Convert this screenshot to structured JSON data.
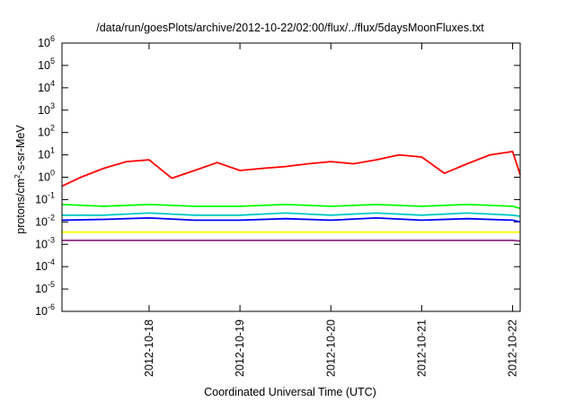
{
  "chart_data": {
    "type": "line",
    "title": "/data/run/goesPlots/archive/2012-10-22/02:00/flux/../flux/5daysMoonFluxes.txt",
    "xlabel": "Coordinated Universal Time (UTC)",
    "ylabel": {
      "base": "protons/cm",
      "sup": "2",
      "rest": "-s-sr-MeV"
    },
    "y_scale": "log",
    "ylim": [
      1e-06,
      1000000.0
    ],
    "xlim": [
      "2012-10-17 01:00",
      "2012-10-22 02:00"
    ],
    "grid": false,
    "legend": "none",
    "y_ticks": [
      {
        "value": 1e-06,
        "exp": "-6"
      },
      {
        "value": 1e-05,
        "exp": "-5"
      },
      {
        "value": 0.0001,
        "exp": "-4"
      },
      {
        "value": 0.001,
        "exp": "-3"
      },
      {
        "value": 0.01,
        "exp": "-2"
      },
      {
        "value": 0.1,
        "exp": "-1"
      },
      {
        "value": 1.0,
        "exp": "0"
      },
      {
        "value": 10.0,
        "exp": "1"
      },
      {
        "value": 100.0,
        "exp": "2"
      },
      {
        "value": 1000.0,
        "exp": "3"
      },
      {
        "value": 10000.0,
        "exp": "4"
      },
      {
        "value": 100000.0,
        "exp": "5"
      },
      {
        "value": 1000000.0,
        "exp": "6"
      }
    ],
    "x_ticks": [
      {
        "label": "2012-10-18",
        "value": "2012-10-18 00:00"
      },
      {
        "label": "2012-10-19",
        "value": "2012-10-19 00:00"
      },
      {
        "label": "2012-10-20",
        "value": "2012-10-20 00:00"
      },
      {
        "label": "2012-10-21",
        "value": "2012-10-21 00:00"
      },
      {
        "label": "2012-10-22",
        "value": "2012-10-22 00:00"
      }
    ],
    "series": [
      {
        "color": "#ff0000",
        "x": [
          "2012-10-17 01:00",
          "2012-10-17 06:00",
          "2012-10-17 12:00",
          "2012-10-17 18:00",
          "2012-10-18 00:00",
          "2012-10-18 06:00",
          "2012-10-18 12:00",
          "2012-10-18 18:00",
          "2012-10-19 00:00",
          "2012-10-19 06:00",
          "2012-10-19 12:00",
          "2012-10-19 18:00",
          "2012-10-20 00:00",
          "2012-10-20 06:00",
          "2012-10-20 12:00",
          "2012-10-20 18:00",
          "2012-10-21 00:00",
          "2012-10-21 06:00",
          "2012-10-21 12:00",
          "2012-10-21 18:00",
          "2012-10-22 00:00",
          "2012-10-22 02:00"
        ],
        "values": [
          0.4,
          1.0,
          2.5,
          5.0,
          6.0,
          0.9,
          2.0,
          4.5,
          2.0,
          2.5,
          3.0,
          4.0,
          5.0,
          4.0,
          6.0,
          10.0,
          8.0,
          1.5,
          4.0,
          10.0,
          14.0,
          1.3
        ]
      },
      {
        "color": "#00ff00",
        "x": [
          "2012-10-17 01:00",
          "2012-10-17 12:00",
          "2012-10-18 00:00",
          "2012-10-18 12:00",
          "2012-10-19 00:00",
          "2012-10-19 12:00",
          "2012-10-20 00:00",
          "2012-10-20 12:00",
          "2012-10-21 00:00",
          "2012-10-21 12:00",
          "2012-10-22 00:00",
          "2012-10-22 02:00"
        ],
        "values": [
          0.06,
          0.05,
          0.06,
          0.05,
          0.05,
          0.06,
          0.05,
          0.06,
          0.05,
          0.06,
          0.05,
          0.04
        ]
      },
      {
        "color": "#00c8c8",
        "x": [
          "2012-10-17 01:00",
          "2012-10-17 12:00",
          "2012-10-18 00:00",
          "2012-10-18 12:00",
          "2012-10-19 00:00",
          "2012-10-19 12:00",
          "2012-10-20 00:00",
          "2012-10-20 12:00",
          "2012-10-21 00:00",
          "2012-10-21 12:00",
          "2012-10-22 00:00",
          "2012-10-22 02:00"
        ],
        "values": [
          0.02,
          0.02,
          0.025,
          0.02,
          0.02,
          0.025,
          0.02,
          0.025,
          0.02,
          0.025,
          0.02,
          0.018
        ]
      },
      {
        "color": "#0000ff",
        "x": [
          "2012-10-17 01:00",
          "2012-10-17 12:00",
          "2012-10-18 00:00",
          "2012-10-18 12:00",
          "2012-10-19 00:00",
          "2012-10-19 12:00",
          "2012-10-20 00:00",
          "2012-10-20 12:00",
          "2012-10-21 00:00",
          "2012-10-21 12:00",
          "2012-10-22 00:00",
          "2012-10-22 02:00"
        ],
        "values": [
          0.012,
          0.013,
          0.015,
          0.012,
          0.012,
          0.014,
          0.012,
          0.015,
          0.012,
          0.014,
          0.012,
          0.01
        ]
      },
      {
        "color": "#ffff00",
        "x": [
          "2012-10-17 01:00",
          "2012-10-17 12:00",
          "2012-10-18 00:00",
          "2012-10-18 12:00",
          "2012-10-19 00:00",
          "2012-10-19 12:00",
          "2012-10-20 00:00",
          "2012-10-20 12:00",
          "2012-10-21 00:00",
          "2012-10-21 12:00",
          "2012-10-22 00:00",
          "2012-10-22 02:00"
        ],
        "values": [
          0.0035,
          0.0035,
          0.0035,
          0.0035,
          0.0035,
          0.0035,
          0.0035,
          0.0035,
          0.0035,
          0.0035,
          0.0035,
          0.0035
        ]
      },
      {
        "color": "#8b2a7a",
        "x": [
          "2012-10-17 01:00",
          "2012-10-17 12:00",
          "2012-10-18 00:00",
          "2012-10-18 12:00",
          "2012-10-19 00:00",
          "2012-10-19 12:00",
          "2012-10-20 00:00",
          "2012-10-20 12:00",
          "2012-10-21 00:00",
          "2012-10-21 12:00",
          "2012-10-22 00:00",
          "2012-10-22 02:00"
        ],
        "values": [
          0.0015,
          0.0015,
          0.0015,
          0.0015,
          0.0015,
          0.0015,
          0.0015,
          0.0015,
          0.0015,
          0.0015,
          0.0015,
          0.0014
        ]
      }
    ]
  }
}
